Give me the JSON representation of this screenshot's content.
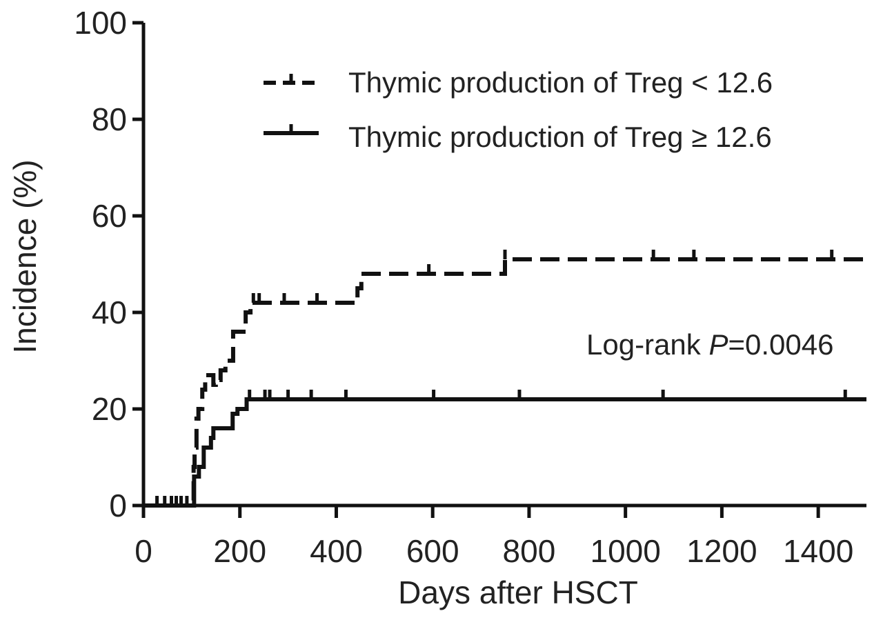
{
  "chart_data": {
    "type": "line",
    "subtype": "kaplan-meier-step",
    "title": "",
    "xlabel": "Days after HSCT",
    "ylabel": "Incidence (%)",
    "xlim": [
      0,
      1500
    ],
    "ylim": [
      0,
      100
    ],
    "x_ticks": [
      "0",
      "200",
      "400",
      "600",
      "800",
      "1000",
      "1200",
      "1400"
    ],
    "y_ticks": [
      "0",
      "20",
      "40",
      "60",
      "80",
      "100"
    ],
    "legend_position": "top-right",
    "annotation": {
      "prefix": "Log-rank ",
      "p_symbol": "P",
      "value": "=0.0046"
    },
    "series": [
      {
        "name": "Thymic production of Treg < 12.6",
        "line_style": "dashed",
        "steps": [
          [
            0,
            0
          ],
          [
            102,
            0
          ],
          [
            104,
            8
          ],
          [
            106,
            12
          ],
          [
            110,
            18
          ],
          [
            114,
            20
          ],
          [
            122,
            24
          ],
          [
            128,
            27
          ],
          [
            140,
            27
          ],
          [
            145,
            25
          ],
          [
            150,
            26
          ],
          [
            160,
            28
          ],
          [
            170,
            30
          ],
          [
            185,
            30
          ],
          [
            186,
            36
          ],
          [
            210,
            36
          ],
          [
            212,
            40
          ],
          [
            222,
            42
          ],
          [
            440,
            42
          ],
          [
            444,
            45
          ],
          [
            452,
            48
          ],
          [
            748,
            48
          ],
          [
            750,
            51
          ],
          [
            1500,
            51
          ]
        ],
        "censor_ticks": [
          [
            228,
            42
          ],
          [
            240,
            42
          ],
          [
            292,
            42
          ],
          [
            360,
            42
          ],
          [
            592,
            48
          ],
          [
            750,
            51
          ],
          [
            1058,
            51
          ],
          [
            1142,
            51
          ],
          [
            1428,
            51
          ]
        ]
      },
      {
        "name": "Thymic production of Treg ≥ 12.6",
        "line_style": "solid",
        "steps": [
          [
            0,
            0
          ],
          [
            102,
            0
          ],
          [
            105,
            6
          ],
          [
            115,
            8
          ],
          [
            125,
            12
          ],
          [
            140,
            14
          ],
          [
            145,
            16
          ],
          [
            182,
            16
          ],
          [
            185,
            19
          ],
          [
            195,
            20
          ],
          [
            210,
            20
          ],
          [
            214,
            22
          ],
          [
            1500,
            22
          ]
        ],
        "censor_ticks": [
          [
            28,
            0
          ],
          [
            44,
            0
          ],
          [
            58,
            0
          ],
          [
            68,
            0
          ],
          [
            78,
            0
          ],
          [
            90,
            0
          ],
          [
            220,
            22
          ],
          [
            252,
            22
          ],
          [
            262,
            22
          ],
          [
            300,
            22
          ],
          [
            348,
            22
          ],
          [
            420,
            22
          ],
          [
            602,
            22
          ],
          [
            780,
            22
          ],
          [
            1078,
            22
          ],
          [
            1456,
            22
          ]
        ]
      }
    ]
  }
}
